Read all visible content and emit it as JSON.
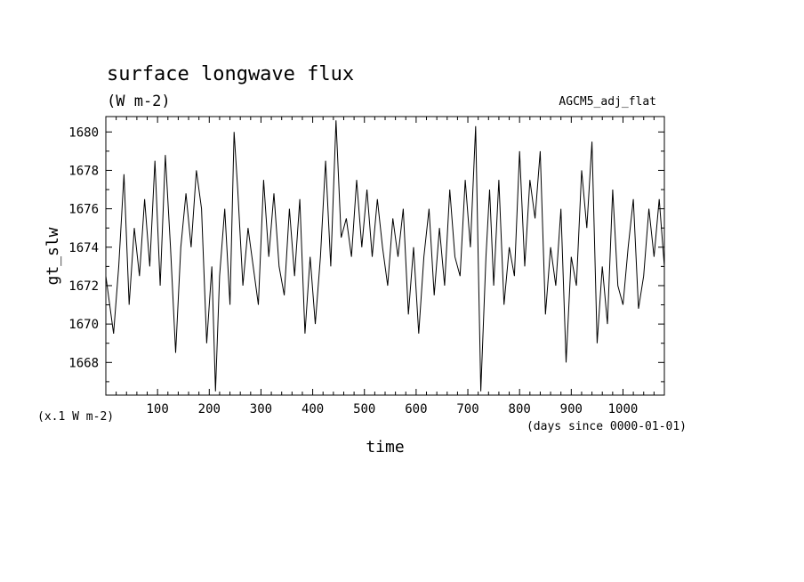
{
  "chart_data": {
    "type": "line",
    "title": "surface longwave flux",
    "subtitle": "(W m-2)",
    "experiment": "AGCM5_adj_flat",
    "xlabel": "time",
    "xunits": "(days since 0000-01-01)",
    "ylabel": "gt_slw",
    "yscale_note": "(x.1 W m-2)",
    "xlim": [
      0,
      1080
    ],
    "ylim": [
      1666.3,
      1680.8
    ],
    "xticks": [
      100,
      200,
      300,
      400,
      500,
      600,
      700,
      800,
      900,
      1000
    ],
    "yticks": [
      1668,
      1670,
      1672,
      1674,
      1676,
      1678,
      1680
    ],
    "grid": false,
    "series": [
      {
        "x": [
          0,
          15,
          25,
          35,
          45,
          55,
          65,
          75,
          85,
          95,
          105,
          115,
          125,
          135,
          145,
          155,
          165,
          175,
          185,
          195,
          205,
          212,
          220,
          230,
          240,
          248,
          255,
          265,
          275,
          285,
          295,
          305,
          315,
          325,
          335,
          345,
          355,
          365,
          375,
          385,
          395,
          405,
          415,
          425,
          435,
          445,
          455,
          465,
          475,
          485,
          495,
          505,
          515,
          525,
          535,
          545,
          555,
          565,
          575,
          585,
          595,
          605,
          615,
          625,
          635,
          645,
          655,
          665,
          675,
          685,
          695,
          705,
          715,
          725,
          735,
          742,
          750,
          760,
          770,
          780,
          790,
          800,
          810,
          820,
          830,
          840,
          850,
          860,
          870,
          880,
          890,
          900,
          910,
          920,
          930,
          940,
          950,
          960,
          970,
          980,
          990,
          1000,
          1010,
          1020,
          1030,
          1040,
          1050,
          1060,
          1070,
          1080
        ],
        "y": [
          1672.5,
          1669.5,
          1673,
          1677.8,
          1671,
          1675,
          1672.5,
          1676.5,
          1673,
          1678.5,
          1672,
          1678.8,
          1674,
          1668.5,
          1674,
          1676.8,
          1674,
          1678,
          1676,
          1669,
          1673,
          1666.5,
          1672.5,
          1676,
          1671,
          1680,
          1677,
          1672,
          1675,
          1673,
          1671,
          1677.5,
          1673.5,
          1676.8,
          1673,
          1671.5,
          1676,
          1672.5,
          1676.5,
          1669.5,
          1673.5,
          1670,
          1673.5,
          1678.5,
          1673,
          1680.6,
          1674.5,
          1675.5,
          1673.5,
          1677.5,
          1674,
          1677,
          1673.5,
          1676.5,
          1674,
          1672,
          1675.5,
          1673.5,
          1676,
          1670.5,
          1674,
          1669.5,
          1673.5,
          1676,
          1671.5,
          1675,
          1672,
          1677,
          1673.5,
          1672.5,
          1677.5,
          1674,
          1680.3,
          1666.5,
          1673.5,
          1677,
          1672,
          1677.5,
          1671,
          1674,
          1672.5,
          1679,
          1673,
          1677.5,
          1675.5,
          1679,
          1670.5,
          1674,
          1672,
          1676,
          1668,
          1673.5,
          1672,
          1678,
          1675,
          1679.5,
          1669,
          1673,
          1670,
          1677,
          1672,
          1671,
          1674,
          1676.5,
          1670.8,
          1672.5,
          1676,
          1673.5,
          1676.5,
          1673
        ]
      }
    ]
  }
}
